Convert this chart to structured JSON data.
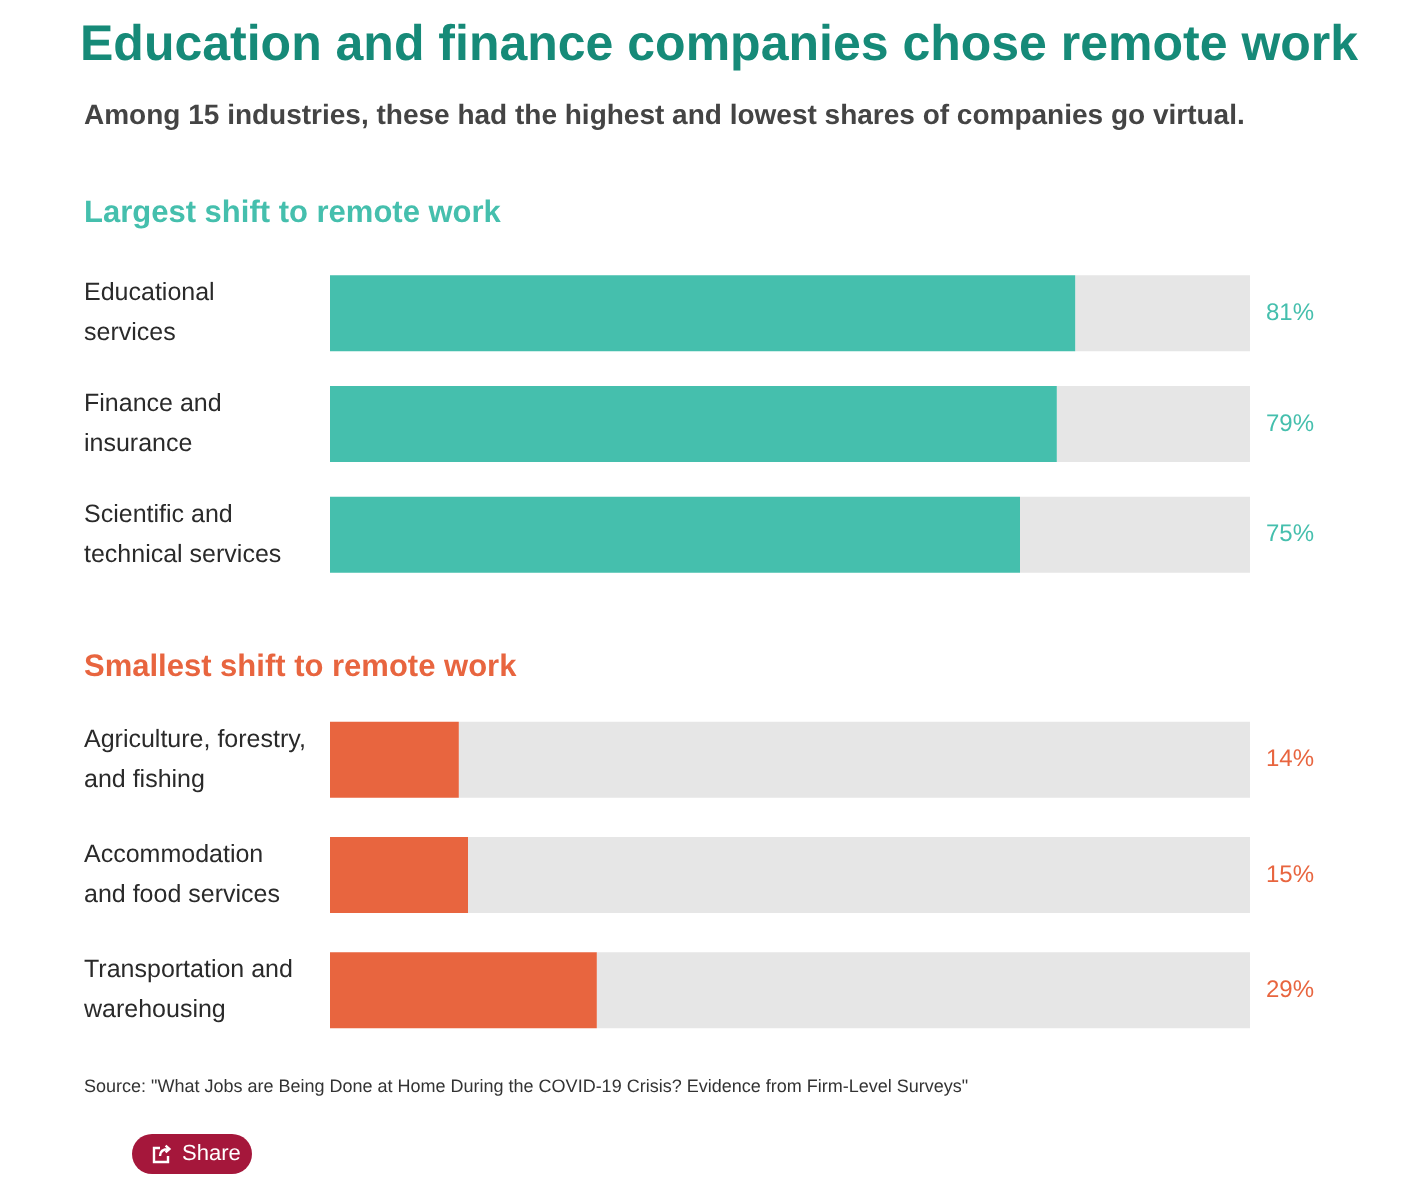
{
  "chart_data": [
    {
      "type": "bar",
      "orientation": "horizontal",
      "stacked": true,
      "title": "Education and finance companies chose remote work",
      "subtitle": "Among 15 industries, these had the highest and lowest shares of companies go virtual.",
      "categories": [
        "Educational services",
        "Finance and insurance",
        "Scientific and technical services"
      ],
      "series": [
        {
          "name": "Largest shift to remote work",
          "color": "#45bfad",
          "values": [
            81,
            79,
            75
          ],
          "value_labels": [
            "81%",
            "79%",
            "75%"
          ]
        },
        {
          "color": "#e6e6e6",
          "values": [
            19,
            21,
            25
          ]
        }
      ],
      "xlim": [
        0,
        100
      ],
      "tick_labels": "y",
      "grid": false,
      "legend": "top left"
    },
    {
      "type": "bar",
      "orientation": "horizontal",
      "stacked": true,
      "categories": [
        "Agriculture, forestry, and fishing",
        "Accommodation and food services",
        "Transportation and warehousing"
      ],
      "series": [
        {
          "name": "Smallest shift to remote work",
          "color": "#e8653f",
          "values": [
            14,
            15,
            29
          ],
          "value_labels": [
            "14%",
            "15%",
            "29%"
          ]
        },
        {
          "color": "#e6e6e6",
          "values": [
            86,
            85,
            71
          ]
        }
      ],
      "xlim": [
        0,
        100
      ],
      "tick_labels": "y",
      "grid": false,
      "legend": "top left",
      "annotations": [
        "Source: \"What Jobs are Being Done at Home During the COVID-19 Crisis? Evidence from Firm-Level Surveys\"",
        "Share"
      ]
    }
  ]
}
